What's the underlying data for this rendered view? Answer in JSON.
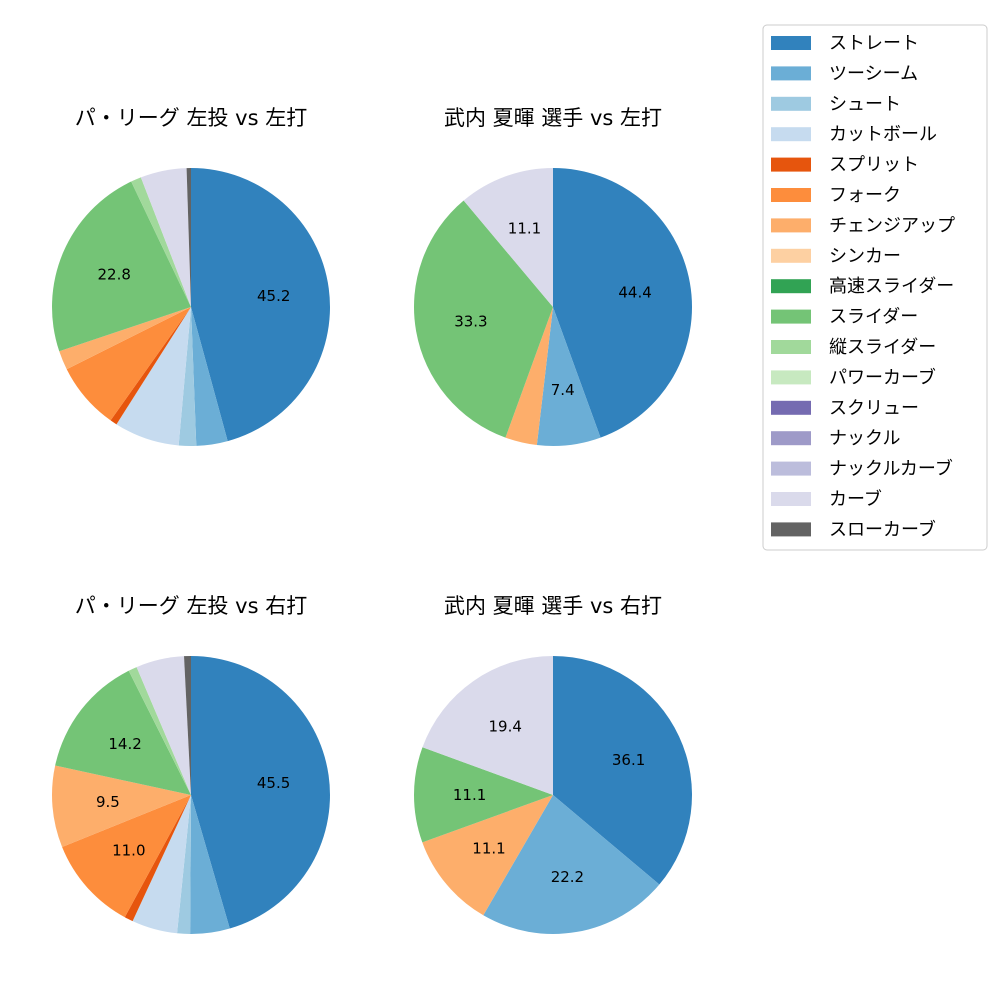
{
  "legend": {
    "position": "top-right",
    "entries": [
      {
        "name": "ストレート",
        "color": "#3182bd"
      },
      {
        "name": "ツーシーム",
        "color": "#6baed6"
      },
      {
        "name": "シュート",
        "color": "#9ecae1"
      },
      {
        "name": "カットボール",
        "color": "#c6dbef"
      },
      {
        "name": "スプリット",
        "color": "#e6550d"
      },
      {
        "name": "フォーク",
        "color": "#fd8d3c"
      },
      {
        "name": "チェンジアップ",
        "color": "#fdae6b"
      },
      {
        "name": "シンカー",
        "color": "#fdd0a2"
      },
      {
        "name": "高速スライダー",
        "color": "#31a354"
      },
      {
        "name": "スライダー",
        "color": "#74c476"
      },
      {
        "name": "縦スライダー",
        "color": "#a1d99b"
      },
      {
        "name": "パワーカーブ",
        "color": "#c7e9c0"
      },
      {
        "name": "スクリュー",
        "color": "#756bb1"
      },
      {
        "name": "ナックル",
        "color": "#9e9ac8"
      },
      {
        "name": "ナックルカーブ",
        "color": "#bcbddc"
      },
      {
        "name": "カーブ",
        "color": "#dadaeb"
      },
      {
        "name": "スローカーブ",
        "color": "#636363"
      }
    ]
  },
  "chart_data": [
    {
      "type": "pie",
      "title": "パ・リーグ 左投 vs 左打",
      "start_angle": 90,
      "direction": "clockwise",
      "slices": [
        {
          "name": "ストレート",
          "value": 45.2,
          "label": "45.2"
        },
        {
          "name": "ツーシーム",
          "value": 3.6,
          "label": ""
        },
        {
          "name": "シュート",
          "value": 2.0,
          "label": ""
        },
        {
          "name": "カットボール",
          "value": 7.5,
          "label": ""
        },
        {
          "name": "スプリット",
          "value": 0.8,
          "label": ""
        },
        {
          "name": "フォーク",
          "value": 7.7,
          "label": ""
        },
        {
          "name": "チェンジアップ",
          "value": 2.2,
          "label": ""
        },
        {
          "name": "スライダー",
          "value": 22.8,
          "label": "22.8"
        },
        {
          "name": "縦スライダー",
          "value": 1.2,
          "label": ""
        },
        {
          "name": "カーブ",
          "value": 5.3,
          "label": ""
        },
        {
          "name": "スローカーブ",
          "value": 0.5,
          "label": ""
        }
      ]
    },
    {
      "type": "pie",
      "title": "武内 夏暉 選手 vs 左打",
      "start_angle": 90,
      "direction": "clockwise",
      "slices": [
        {
          "name": "ストレート",
          "value": 44.4,
          "label": "44.4"
        },
        {
          "name": "ツーシーム",
          "value": 7.4,
          "label": "7.4"
        },
        {
          "name": "チェンジアップ",
          "value": 3.7,
          "label": ""
        },
        {
          "name": "スライダー",
          "value": 33.3,
          "label": "33.3"
        },
        {
          "name": "カーブ",
          "value": 11.1,
          "label": "11.1"
        }
      ]
    },
    {
      "type": "pie",
      "title": "パ・リーグ 左投 vs 右打",
      "start_angle": 90,
      "direction": "clockwise",
      "slices": [
        {
          "name": "ストレート",
          "value": 45.5,
          "label": "45.5"
        },
        {
          "name": "ツーシーム",
          "value": 4.6,
          "label": ""
        },
        {
          "name": "シュート",
          "value": 1.5,
          "label": ""
        },
        {
          "name": "カットボール",
          "value": 5.3,
          "label": ""
        },
        {
          "name": "スプリット",
          "value": 1.0,
          "label": ""
        },
        {
          "name": "フォーク",
          "value": 11.0,
          "label": "11.0"
        },
        {
          "name": "チェンジアップ",
          "value": 9.5,
          "label": "9.5"
        },
        {
          "name": "スライダー",
          "value": 14.2,
          "label": "14.2"
        },
        {
          "name": "縦スライダー",
          "value": 1.0,
          "label": ""
        },
        {
          "name": "カーブ",
          "value": 5.6,
          "label": ""
        },
        {
          "name": "スローカーブ",
          "value": 0.8,
          "label": ""
        }
      ]
    },
    {
      "type": "pie",
      "title": "武内 夏暉 選手 vs 右打",
      "start_angle": 90,
      "direction": "clockwise",
      "slices": [
        {
          "name": "ストレート",
          "value": 36.1,
          "label": "36.1"
        },
        {
          "name": "ツーシーム",
          "value": 22.2,
          "label": "22.2"
        },
        {
          "name": "チェンジアップ",
          "value": 11.1,
          "label": "11.1"
        },
        {
          "name": "スライダー",
          "value": 11.1,
          "label": "11.1"
        },
        {
          "name": "カーブ",
          "value": 19.4,
          "label": "19.4"
        }
      ]
    }
  ]
}
